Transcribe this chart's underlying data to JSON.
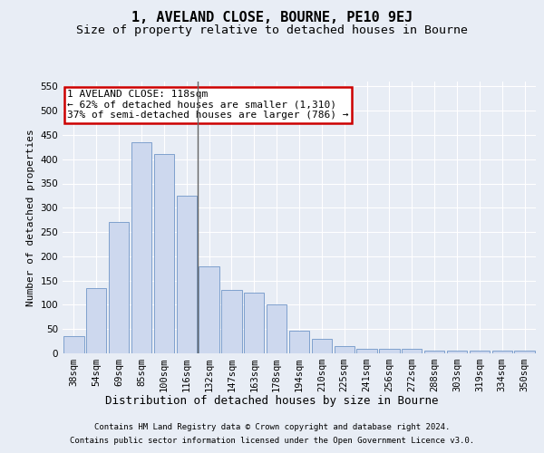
{
  "title": "1, AVELAND CLOSE, BOURNE, PE10 9EJ",
  "subtitle": "Size of property relative to detached houses in Bourne",
  "xlabel": "Distribution of detached houses by size in Bourne",
  "ylabel": "Number of detached properties",
  "categories": [
    "38sqm",
    "54sqm",
    "69sqm",
    "85sqm",
    "100sqm",
    "116sqm",
    "132sqm",
    "147sqm",
    "163sqm",
    "178sqm",
    "194sqm",
    "210sqm",
    "225sqm",
    "241sqm",
    "256sqm",
    "272sqm",
    "288sqm",
    "303sqm",
    "319sqm",
    "334sqm",
    "350sqm"
  ],
  "values": [
    35,
    135,
    270,
    435,
    410,
    325,
    180,
    130,
    125,
    100,
    47,
    30,
    15,
    10,
    10,
    10,
    5,
    5,
    5,
    5,
    5
  ],
  "bar_color": "#cdd8ee",
  "bar_edge_color": "#7096c8",
  "vline_x_index": 5,
  "vline_color": "#666666",
  "annotation_text": "1 AVELAND CLOSE: 118sqm\n← 62% of detached houses are smaller (1,310)\n37% of semi-detached houses are larger (786) →",
  "annotation_box_facecolor": "#ffffff",
  "annotation_box_edgecolor": "#cc0000",
  "ylim": [
    0,
    560
  ],
  "yticks": [
    0,
    50,
    100,
    150,
    200,
    250,
    300,
    350,
    400,
    450,
    500,
    550
  ],
  "bg_color": "#e8edf5",
  "grid_color": "#ffffff",
  "footer_line1": "Contains HM Land Registry data © Crown copyright and database right 2024.",
  "footer_line2": "Contains public sector information licensed under the Open Government Licence v3.0.",
  "title_fontsize": 11,
  "subtitle_fontsize": 9.5,
  "xlabel_fontsize": 9,
  "ylabel_fontsize": 8,
  "tick_fontsize": 7.5,
  "annot_fontsize": 8,
  "footer_fontsize": 6.5
}
